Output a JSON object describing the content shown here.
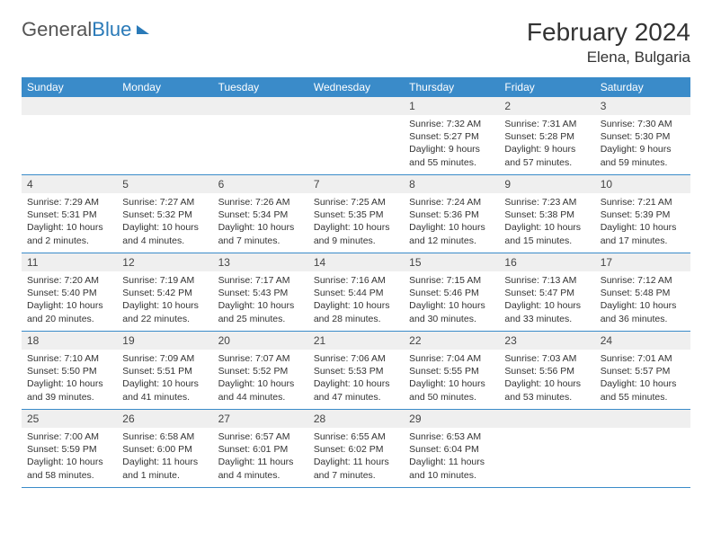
{
  "logo": {
    "text1": "General",
    "text2": "Blue"
  },
  "title": "February 2024",
  "location": "Elena, Bulgaria",
  "weekdays": [
    "Sunday",
    "Monday",
    "Tuesday",
    "Wednesday",
    "Thursday",
    "Friday",
    "Saturday"
  ],
  "colors": {
    "header_bg": "#3a8bc9",
    "header_fg": "#ffffff",
    "daynum_bg": "#efefef",
    "border": "#3a8bc9",
    "text": "#333333",
    "logo_blue": "#2a7ab8"
  },
  "weeks": [
    [
      null,
      null,
      null,
      null,
      {
        "n": "1",
        "sr": "Sunrise: 7:32 AM",
        "ss": "Sunset: 5:27 PM",
        "d1": "Daylight: 9 hours",
        "d2": "and 55 minutes."
      },
      {
        "n": "2",
        "sr": "Sunrise: 7:31 AM",
        "ss": "Sunset: 5:28 PM",
        "d1": "Daylight: 9 hours",
        "d2": "and 57 minutes."
      },
      {
        "n": "3",
        "sr": "Sunrise: 7:30 AM",
        "ss": "Sunset: 5:30 PM",
        "d1": "Daylight: 9 hours",
        "d2": "and 59 minutes."
      }
    ],
    [
      {
        "n": "4",
        "sr": "Sunrise: 7:29 AM",
        "ss": "Sunset: 5:31 PM",
        "d1": "Daylight: 10 hours",
        "d2": "and 2 minutes."
      },
      {
        "n": "5",
        "sr": "Sunrise: 7:27 AM",
        "ss": "Sunset: 5:32 PM",
        "d1": "Daylight: 10 hours",
        "d2": "and 4 minutes."
      },
      {
        "n": "6",
        "sr": "Sunrise: 7:26 AM",
        "ss": "Sunset: 5:34 PM",
        "d1": "Daylight: 10 hours",
        "d2": "and 7 minutes."
      },
      {
        "n": "7",
        "sr": "Sunrise: 7:25 AM",
        "ss": "Sunset: 5:35 PM",
        "d1": "Daylight: 10 hours",
        "d2": "and 9 minutes."
      },
      {
        "n": "8",
        "sr": "Sunrise: 7:24 AM",
        "ss": "Sunset: 5:36 PM",
        "d1": "Daylight: 10 hours",
        "d2": "and 12 minutes."
      },
      {
        "n": "9",
        "sr": "Sunrise: 7:23 AM",
        "ss": "Sunset: 5:38 PM",
        "d1": "Daylight: 10 hours",
        "d2": "and 15 minutes."
      },
      {
        "n": "10",
        "sr": "Sunrise: 7:21 AM",
        "ss": "Sunset: 5:39 PM",
        "d1": "Daylight: 10 hours",
        "d2": "and 17 minutes."
      }
    ],
    [
      {
        "n": "11",
        "sr": "Sunrise: 7:20 AM",
        "ss": "Sunset: 5:40 PM",
        "d1": "Daylight: 10 hours",
        "d2": "and 20 minutes."
      },
      {
        "n": "12",
        "sr": "Sunrise: 7:19 AM",
        "ss": "Sunset: 5:42 PM",
        "d1": "Daylight: 10 hours",
        "d2": "and 22 minutes."
      },
      {
        "n": "13",
        "sr": "Sunrise: 7:17 AM",
        "ss": "Sunset: 5:43 PM",
        "d1": "Daylight: 10 hours",
        "d2": "and 25 minutes."
      },
      {
        "n": "14",
        "sr": "Sunrise: 7:16 AM",
        "ss": "Sunset: 5:44 PM",
        "d1": "Daylight: 10 hours",
        "d2": "and 28 minutes."
      },
      {
        "n": "15",
        "sr": "Sunrise: 7:15 AM",
        "ss": "Sunset: 5:46 PM",
        "d1": "Daylight: 10 hours",
        "d2": "and 30 minutes."
      },
      {
        "n": "16",
        "sr": "Sunrise: 7:13 AM",
        "ss": "Sunset: 5:47 PM",
        "d1": "Daylight: 10 hours",
        "d2": "and 33 minutes."
      },
      {
        "n": "17",
        "sr": "Sunrise: 7:12 AM",
        "ss": "Sunset: 5:48 PM",
        "d1": "Daylight: 10 hours",
        "d2": "and 36 minutes."
      }
    ],
    [
      {
        "n": "18",
        "sr": "Sunrise: 7:10 AM",
        "ss": "Sunset: 5:50 PM",
        "d1": "Daylight: 10 hours",
        "d2": "and 39 minutes."
      },
      {
        "n": "19",
        "sr": "Sunrise: 7:09 AM",
        "ss": "Sunset: 5:51 PM",
        "d1": "Daylight: 10 hours",
        "d2": "and 41 minutes."
      },
      {
        "n": "20",
        "sr": "Sunrise: 7:07 AM",
        "ss": "Sunset: 5:52 PM",
        "d1": "Daylight: 10 hours",
        "d2": "and 44 minutes."
      },
      {
        "n": "21",
        "sr": "Sunrise: 7:06 AM",
        "ss": "Sunset: 5:53 PM",
        "d1": "Daylight: 10 hours",
        "d2": "and 47 minutes."
      },
      {
        "n": "22",
        "sr": "Sunrise: 7:04 AM",
        "ss": "Sunset: 5:55 PM",
        "d1": "Daylight: 10 hours",
        "d2": "and 50 minutes."
      },
      {
        "n": "23",
        "sr": "Sunrise: 7:03 AM",
        "ss": "Sunset: 5:56 PM",
        "d1": "Daylight: 10 hours",
        "d2": "and 53 minutes."
      },
      {
        "n": "24",
        "sr": "Sunrise: 7:01 AM",
        "ss": "Sunset: 5:57 PM",
        "d1": "Daylight: 10 hours",
        "d2": "and 55 minutes."
      }
    ],
    [
      {
        "n": "25",
        "sr": "Sunrise: 7:00 AM",
        "ss": "Sunset: 5:59 PM",
        "d1": "Daylight: 10 hours",
        "d2": "and 58 minutes."
      },
      {
        "n": "26",
        "sr": "Sunrise: 6:58 AM",
        "ss": "Sunset: 6:00 PM",
        "d1": "Daylight: 11 hours",
        "d2": "and 1 minute."
      },
      {
        "n": "27",
        "sr": "Sunrise: 6:57 AM",
        "ss": "Sunset: 6:01 PM",
        "d1": "Daylight: 11 hours",
        "d2": "and 4 minutes."
      },
      {
        "n": "28",
        "sr": "Sunrise: 6:55 AM",
        "ss": "Sunset: 6:02 PM",
        "d1": "Daylight: 11 hours",
        "d2": "and 7 minutes."
      },
      {
        "n": "29",
        "sr": "Sunrise: 6:53 AM",
        "ss": "Sunset: 6:04 PM",
        "d1": "Daylight: 11 hours",
        "d2": "and 10 minutes."
      },
      null,
      null
    ]
  ]
}
